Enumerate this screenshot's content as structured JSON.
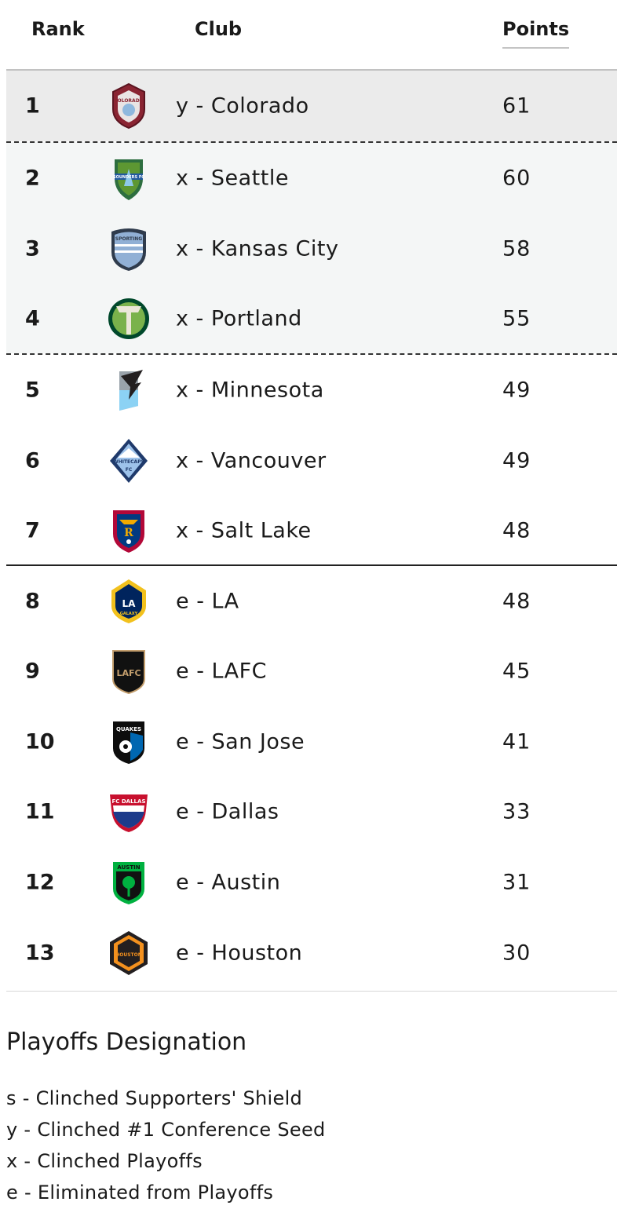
{
  "header": {
    "rank": "Rank",
    "club": "Club",
    "points": "Points"
  },
  "rows": [
    {
      "rank": "1",
      "club": "y - Colorado",
      "points": "61",
      "crest": "colorado-rapids-crest"
    },
    {
      "rank": "2",
      "club": "x - Seattle",
      "points": "60",
      "crest": "seattle-sounders-crest"
    },
    {
      "rank": "3",
      "club": "x - Kansas City",
      "points": "58",
      "crest": "sporting-kc-crest"
    },
    {
      "rank": "4",
      "club": "x - Portland",
      "points": "55",
      "crest": "portland-timbers-crest"
    },
    {
      "rank": "5",
      "club": "x - Minnesota",
      "points": "49",
      "crest": "minnesota-united-crest"
    },
    {
      "rank": "6",
      "club": "x - Vancouver",
      "points": "49",
      "crest": "vancouver-whitecaps-crest"
    },
    {
      "rank": "7",
      "club": "x - Salt Lake",
      "points": "48",
      "crest": "real-salt-lake-crest"
    },
    {
      "rank": "8",
      "club": "e - LA",
      "points": "48",
      "crest": "la-galaxy-crest"
    },
    {
      "rank": "9",
      "club": "e - LAFC",
      "points": "45",
      "crest": "lafc-crest"
    },
    {
      "rank": "10",
      "club": "e - San Jose",
      "points": "41",
      "crest": "san-jose-quakes-crest"
    },
    {
      "rank": "11",
      "club": "e - Dallas",
      "points": "33",
      "crest": "fc-dallas-crest"
    },
    {
      "rank": "12",
      "club": "e - Austin",
      "points": "31",
      "crest": "austin-fc-crest"
    },
    {
      "rank": "13",
      "club": "e - Houston",
      "points": "30",
      "crest": "houston-dynamo-crest"
    }
  ],
  "crest_text": {
    "colorado": "COLORADO",
    "seattle": "SOUNDERS FC",
    "kc": "SPORTING",
    "vancouver": "WHITECAPS",
    "vancouver_fc": "FC",
    "la": "LA",
    "la_galaxy": "GALAXY",
    "lafc": "LAFC",
    "sj": "QUAKES",
    "dallas": "FC DALLAS",
    "austin": "AUSTIN",
    "houston": "HOUSTON"
  },
  "legend": {
    "title": "Playoffs Designation",
    "items": [
      "s - Clinched Supporters' Shield",
      "y - Clinched #1 Conference Seed",
      "x - Clinched Playoffs",
      "e - Eliminated from Playoffs"
    ]
  }
}
